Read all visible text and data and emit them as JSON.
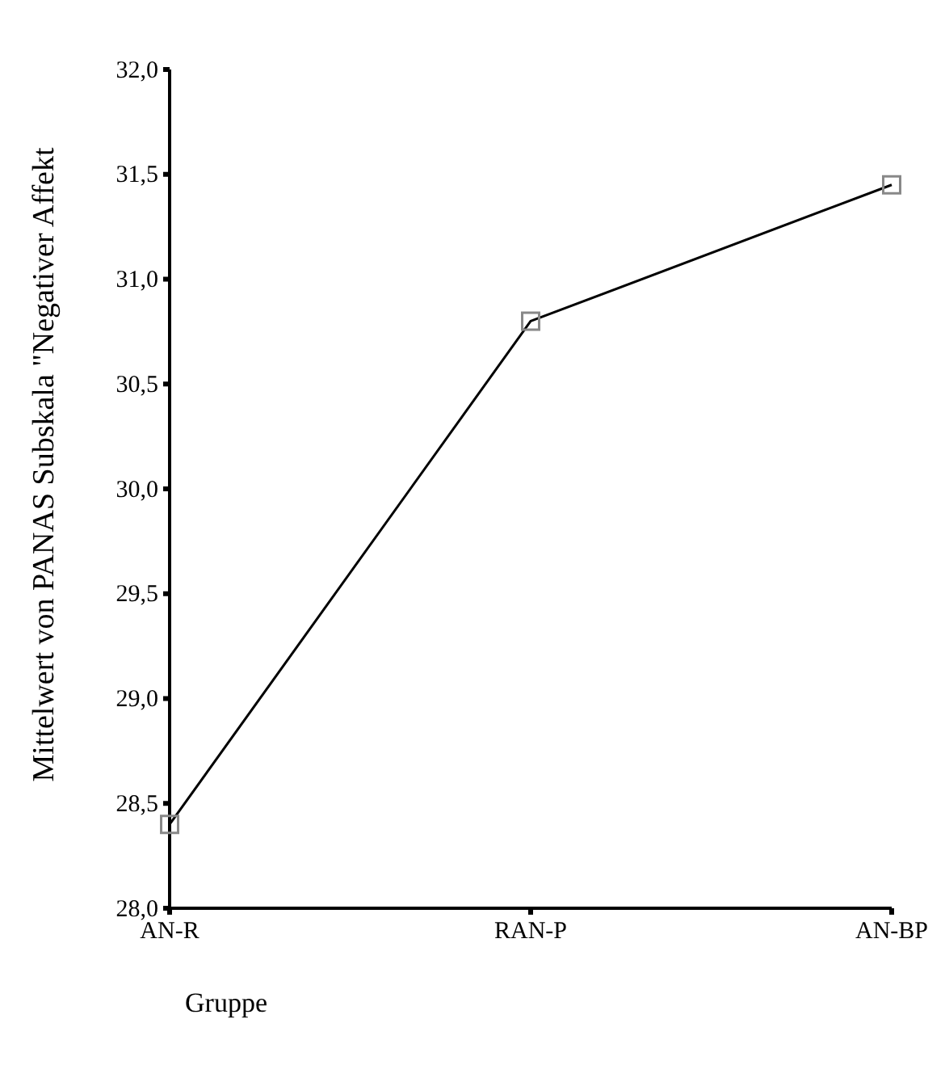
{
  "chart_data": {
    "type": "line",
    "xlabel": "Gruppe",
    "ylabel": "Mittelwert von PANAS Subskala \"Negativer Affekt",
    "categories": [
      "AN-R",
      "RAN-P",
      "AN-BP"
    ],
    "series": [
      {
        "color": "#000000",
        "values": [
          28.4,
          30.8,
          31.45
        ]
      }
    ],
    "ylim": [
      28.0,
      32.0
    ],
    "yticks": [
      {
        "value": 28,
        "label": "28,0"
      },
      {
        "value": 28.5,
        "label": "28,5"
      },
      {
        "value": 29,
        "label": "29,0"
      },
      {
        "value": 29.5,
        "label": "29,5"
      },
      {
        "value": 30,
        "label": "30,0"
      },
      {
        "value": 30.5,
        "label": "30,5"
      },
      {
        "value": 31,
        "label": "31,0"
      },
      {
        "value": 31.5,
        "label": "31,5"
      },
      {
        "value": 32,
        "label": "32,0"
      }
    ],
    "grid": false,
    "marker": "square",
    "line_style": "solid"
  }
}
